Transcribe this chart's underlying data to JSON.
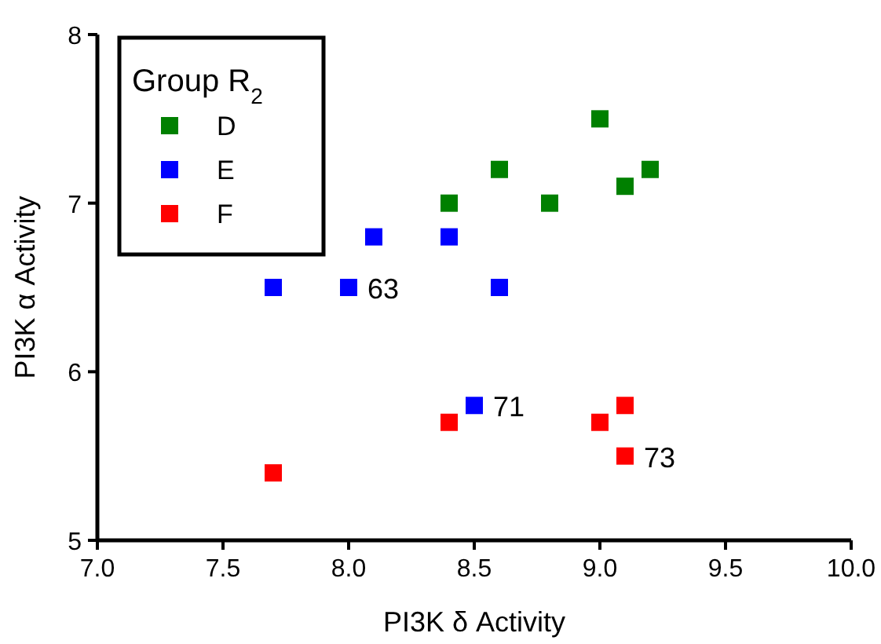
{
  "chart_data": {
    "type": "scatter",
    "xlabel": "PI3K δ Activity",
    "ylabel": "PI3K α Activity",
    "legend_title": "Group R$_{2}$",
    "legend": "top left",
    "marker": "square",
    "grid": false,
    "xlim": [
      7.0,
      10.0
    ],
    "xticks": [
      {
        "value": 7,
        "label": "7.0"
      },
      {
        "value": 7.5,
        "label": "7.5"
      },
      {
        "value": 8,
        "label": "8.0"
      },
      {
        "value": 8.5,
        "label": "8.5"
      },
      {
        "value": 9,
        "label": "9.0"
      },
      {
        "value": 9.5,
        "label": "9.5"
      },
      {
        "value": 10,
        "label": "10.0"
      }
    ],
    "ylim": [
      5,
      8
    ],
    "yticks": [
      5,
      6,
      7,
      8
    ],
    "series": [
      {
        "name": "D",
        "color": "#008000",
        "x": [
          8.4,
          8.6,
          8.8,
          9.0,
          9.1,
          9.2
        ],
        "values": [
          7.0,
          7.2,
          7.0,
          7.5,
          7.1,
          7.2
        ]
      },
      {
        "name": "E",
        "color": "#0000ff",
        "x": [
          7.7,
          8.0,
          8.1,
          8.4,
          8.6,
          8.5
        ],
        "values": [
          6.5,
          6.5,
          6.8,
          6.8,
          6.5,
          5.8
        ]
      },
      {
        "name": "F",
        "color": "#ff0000",
        "x": [
          7.7,
          8.4,
          9.0,
          9.1,
          9.1
        ],
        "values": [
          5.4,
          5.7,
          5.7,
          5.8,
          5.5
        ]
      }
    ],
    "annotations": [
      {
        "text": "63",
        "x": 8.0,
        "y": 6.5
      },
      {
        "text": "71",
        "x": 8.5,
        "y": 5.8
      },
      {
        "text": "73",
        "x": 9.1,
        "y": 5.5
      }
    ]
  }
}
